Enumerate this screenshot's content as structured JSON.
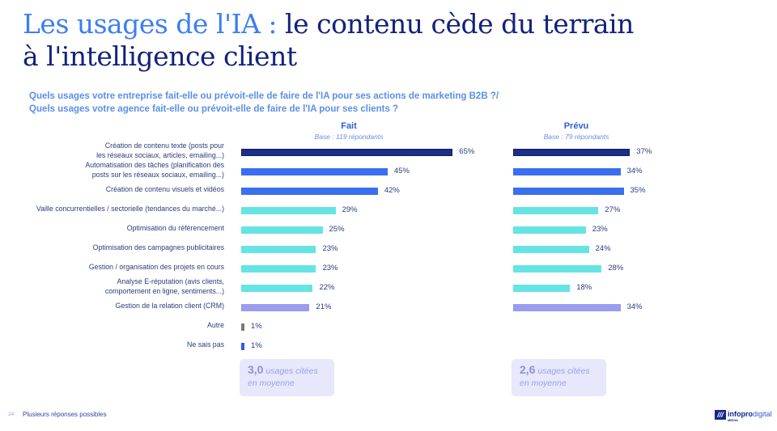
{
  "title": {
    "highlight": "Les usages de l'IA :",
    "rest_line1": " le contenu cède du terrain",
    "line2": "à l'intelligence client"
  },
  "question": {
    "line1": "Quels usages votre entreprise fait-elle ou prévoit-elle de faire de l'IA pour ses actions de marketing B2B ?/",
    "line2": "Quels usages votre agence fait-elle ou prévoit-elle de faire de l'IA pour ses clients ?"
  },
  "columns": {
    "fait": {
      "name": "Fait",
      "base": "Base : 119 répondants"
    },
    "prevu": {
      "name": "Prévu",
      "base": "Base : 79 répondants"
    }
  },
  "chart_data": {
    "type": "bar",
    "orientation": "horizontal",
    "unit": "%",
    "categories": [
      "Création de contenu texte (posts pour les réseaux sociaux, articles, emailing...)",
      "Automatisation des tâches (planification des posts sur les réseaux sociaux, emailing...)",
      "Création de contenu visuels et vidéos",
      "Vaille concurrentielles / sectorielle (tendances du marché...)",
      "Optimisation du référencement",
      "Optimisation des campagnes publicitaires",
      "Gestion / organisation des projets en cours",
      "Analyse E-réputation (avis clients, comportement en ligne, sentiments...)",
      "Gestion de la relation client (CRM)",
      "Autre",
      "Ne sais pas"
    ],
    "category_lines": [
      [
        "Création de contenu texte (posts pour",
        "les réseaux sociaux, articles, emailing...)"
      ],
      [
        "Automatisation des tâches (planification des",
        "posts sur les réseaux sociaux, emailing...)"
      ],
      [
        "Création de contenu visuels et vidéos"
      ],
      [
        "Vaille concurrentielles / sectorielle (tendances du marché...)"
      ],
      [
        "Optimisation du référencement"
      ],
      [
        "Optimisation des campagnes publicitaires"
      ],
      [
        "Gestion / organisation des projets en cours"
      ],
      [
        "Analyse E-réputation (avis clients,",
        "comportement en ligne, sentiments...)"
      ],
      [
        "Gestion de la relation client (CRM)"
      ],
      [
        "Autre"
      ],
      [
        "Ne sais pas"
      ]
    ],
    "bar_colors": [
      "#1c2f86",
      "#3a6ff0",
      "#3a6ff0",
      "#66e3e3",
      "#66e3e3",
      "#66e3e3",
      "#66e3e3",
      "#66e3e3",
      "#9a9cf0",
      "#7a7a7a",
      "#2b5de8"
    ],
    "series": [
      {
        "name": "Fait",
        "values": [
          65,
          45,
          42,
          29,
          25,
          23,
          23,
          22,
          21,
          1,
          1
        ]
      },
      {
        "name": "Prévu",
        "values": [
          37,
          34,
          35,
          27,
          23,
          24,
          28,
          18,
          34,
          null,
          null
        ]
      }
    ],
    "xlim": [
      0,
      100
    ]
  },
  "averages": {
    "fait": {
      "value": "3,0",
      "text1": " usages citées",
      "text2": "en moyenne"
    },
    "prevu": {
      "value": "2,6",
      "text1": " usages citées",
      "text2": "en moyenne"
    }
  },
  "footer": {
    "page": "24",
    "note": "Plusieurs réponses possibles",
    "logo_bold": "infopro",
    "logo_light": "digital",
    "logo_sub": "MEDIA"
  }
}
